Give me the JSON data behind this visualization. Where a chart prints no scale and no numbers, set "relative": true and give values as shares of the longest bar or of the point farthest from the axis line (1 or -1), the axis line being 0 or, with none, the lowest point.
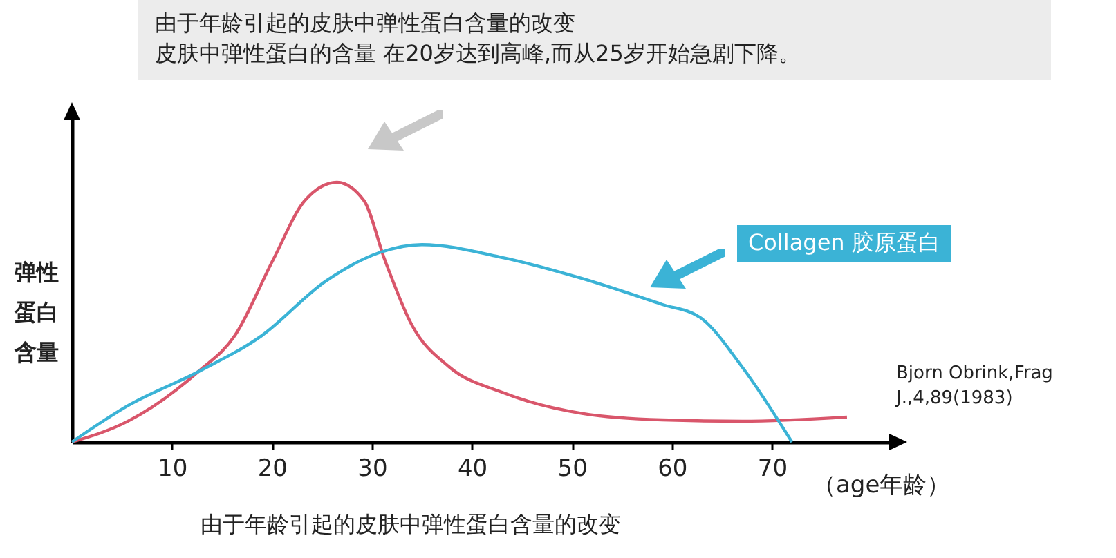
{
  "chart_data": {
    "type": "line",
    "title": "由于年龄引起的皮肤中弹性蛋白含量的改变",
    "subtitle": "皮肤中弹性蛋白的含量 在20岁达到高峰,而从25岁开始急剧下降。",
    "xlabel": "（age年龄）",
    "ylabel": "弹性蛋白含量",
    "relative": true,
    "xlim": [
      0,
      82
    ],
    "xticks": [
      10,
      20,
      30,
      40,
      50,
      60,
      70
    ],
    "grid": false,
    "annotations": [
      "Bjorn Obrink,Frag J.,4,89(1983)",
      "由于年龄引起的皮肤中弹性蛋白含量的改变"
    ],
    "series": [
      {
        "color": "#d9566b",
        "x": [
          0,
          5.6,
          12.6,
          16.3,
          20.1,
          23.3,
          26.5,
          29.2,
          31.3,
          34,
          37.7,
          43.1,
          51,
          59,
          67,
          77.5
        ],
        "values": [
          0,
          0.08,
          0.27,
          0.41,
          0.7,
          0.93,
          1,
          0.93,
          0.7,
          0.45,
          0.29,
          0.19,
          0.11,
          0.085,
          0.08,
          0.096
        ]
      },
      {
        "name": "Collagen 胶原蛋白",
        "color": "#3bb3d6",
        "x": [
          0,
          5.6,
          12.6,
          19,
          25.4,
          30.8,
          35,
          43.1,
          51,
          59,
          62.8,
          67,
          72
        ],
        "values": [
          0,
          0.14,
          0.27,
          0.41,
          0.62,
          0.73,
          0.76,
          0.71,
          0.63,
          0.53,
          0.48,
          0.29,
          0
        ]
      }
    ]
  }
}
